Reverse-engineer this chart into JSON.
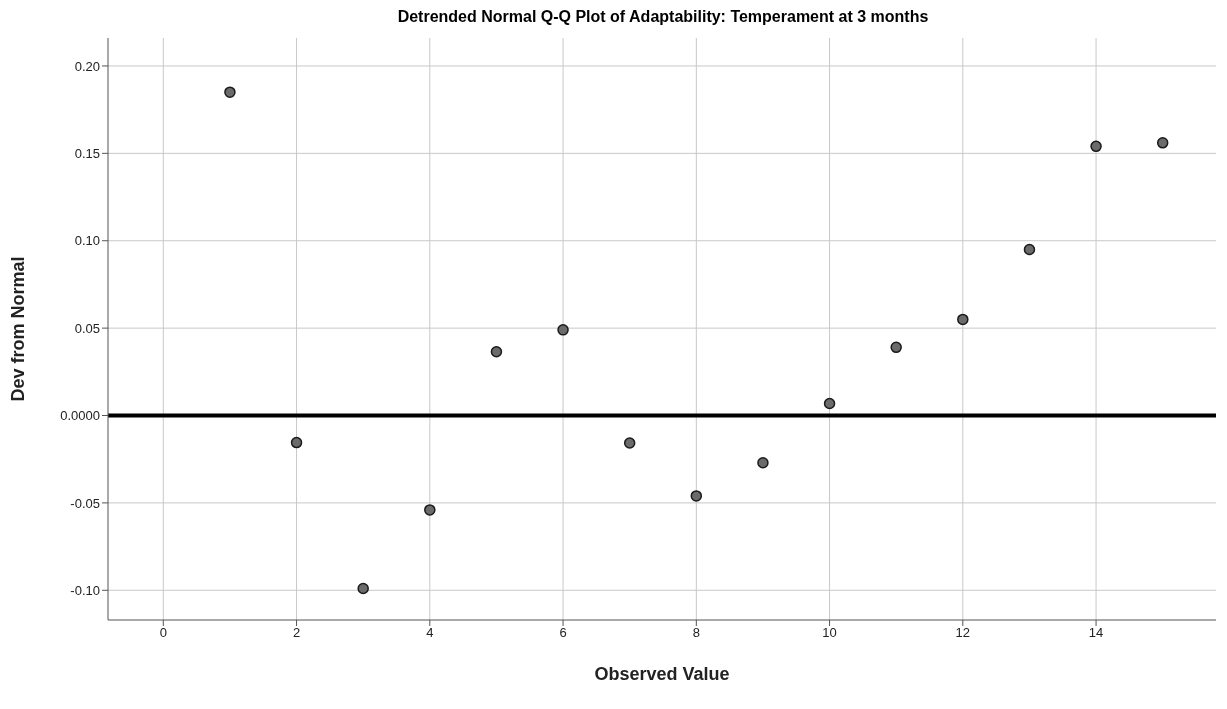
{
  "chart_data": {
    "type": "scatter",
    "title": "Detrended Normal Q-Q Plot of Adaptability: Temperament at 3 months",
    "xlabel": "Observed Value",
    "ylabel": "Dev from Normal",
    "x": [
      1,
      2,
      3,
      4,
      5,
      6,
      7,
      8,
      9,
      10,
      11,
      12,
      13,
      14,
      15
    ],
    "series": [
      {
        "color": "#6b6b6b",
        "values": [
          0.185,
          -0.0155,
          -0.099,
          -0.054,
          0.0365,
          0.049,
          -0.0157,
          -0.046,
          -0.027,
          0.0069,
          0.039,
          0.055,
          0.095,
          0.154,
          0.156
        ]
      }
    ],
    "xlim": [
      -0.83,
      15.8
    ],
    "xticks": [
      0,
      2,
      4,
      6,
      8,
      10,
      12,
      14
    ],
    "ylim": [
      -0.117,
      0.216
    ],
    "yticks": [
      {
        "value": -0.1,
        "label": "-0.10"
      },
      -0.05,
      {
        "value": 0,
        "label": "0.0000"
      },
      0.05,
      {
        "value": 0.1,
        "label": "0.10"
      },
      0.15,
      {
        "value": 0.2,
        "label": "0.20"
      }
    ],
    "ref_lines": [
      {
        "axis": "y",
        "value": 0,
        "color": "#000000"
      }
    ],
    "grid": true,
    "marker": "circle",
    "legend": false
  }
}
